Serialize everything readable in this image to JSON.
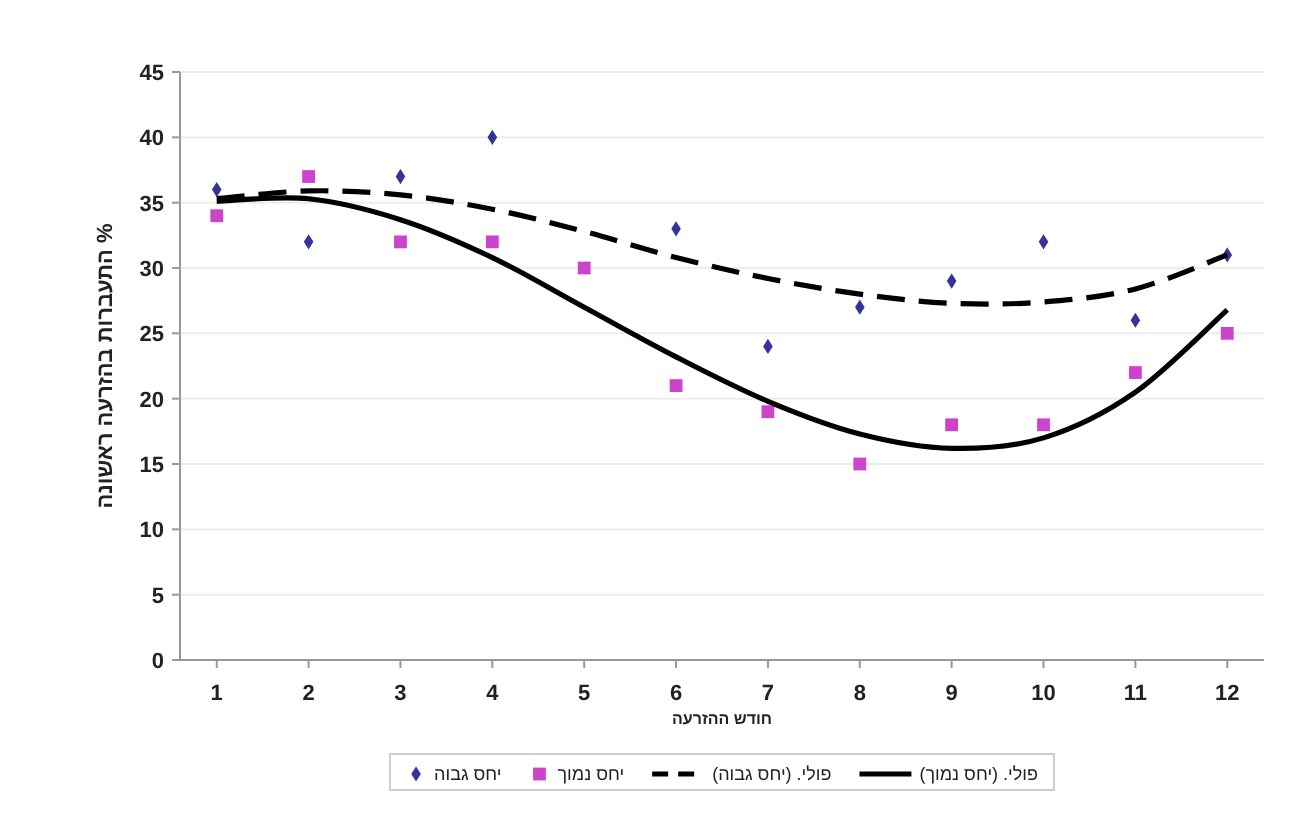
{
  "chart_data": {
    "type": "scatter",
    "xlabel": "חודש ההזרעה",
    "ylabel": "% התעברות בהזרעה ראשונה",
    "x": [
      1,
      2,
      3,
      4,
      5,
      6,
      7,
      8,
      9,
      10,
      11,
      12
    ],
    "series": [
      {
        "name": "יחס גבוה",
        "color": "#33339a",
        "marker": "diamond",
        "values": [
          36,
          32,
          37,
          40,
          null,
          33,
          24,
          27,
          29,
          32,
          26,
          31
        ]
      },
      {
        "name": "יחס נמוך",
        "color": "#cc44cc",
        "marker": "square",
        "values": [
          34,
          37,
          32,
          32,
          30,
          21,
          19,
          15,
          18,
          18,
          22,
          25
        ]
      },
      {
        "name": "פולי. (יחס גבוה)",
        "type": "line",
        "color": "#000000",
        "marker": "none",
        "line_style": "dashed",
        "x": [
          1,
          2,
          3,
          4,
          5,
          6,
          7,
          8,
          9,
          10,
          11,
          12
        ],
        "values": [
          35.3,
          35.9,
          35.6,
          34.5,
          32.8,
          30.8,
          29.2,
          28,
          27.3,
          27.4,
          28.4,
          31
        ]
      },
      {
        "name": "פולי. (יחס נמוך)",
        "type": "line",
        "color": "#000000",
        "marker": "none",
        "line_style": "solid",
        "x": [
          1,
          2,
          3,
          4,
          5,
          6,
          7,
          8,
          9,
          10,
          11,
          12
        ],
        "values": [
          35.1,
          35.3,
          33.7,
          30.8,
          27,
          23.2,
          19.8,
          17.3,
          16.2,
          17,
          20.5,
          26.8
        ]
      }
    ],
    "xlim": [
      0.6,
      12.4
    ],
    "xticks": [
      1,
      2,
      3,
      4,
      5,
      6,
      7,
      8,
      9,
      10,
      11,
      12
    ],
    "ylim": [
      0,
      45
    ],
    "yticks": [
      0,
      5,
      10,
      15,
      20,
      25,
      30,
      35,
      40,
      45
    ],
    "grid": "y",
    "legend": "bottom"
  }
}
